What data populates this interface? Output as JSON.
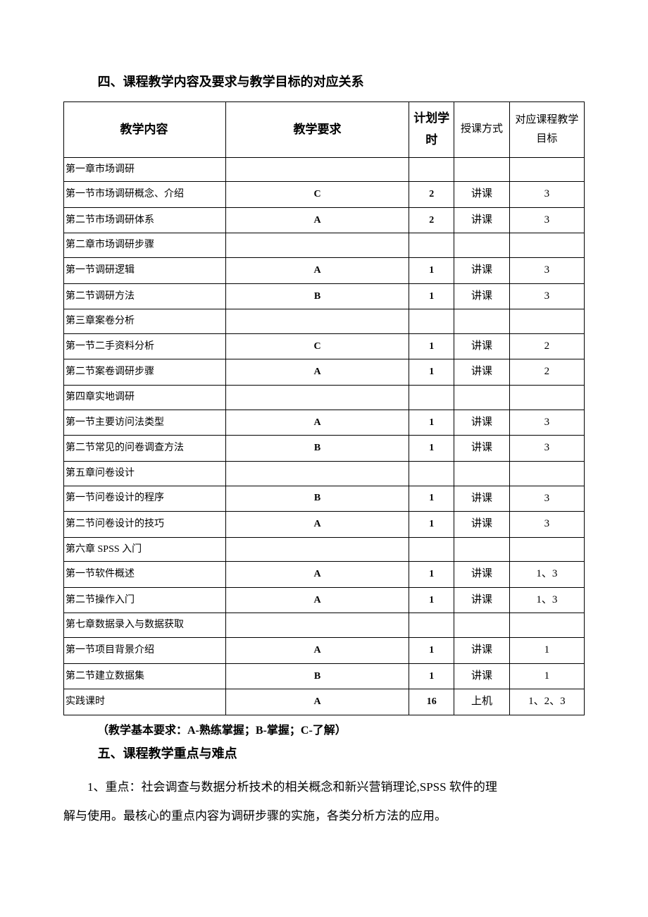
{
  "section4": {
    "heading": "四、课程教学内容及要求与教学目标的对应关系",
    "table": {
      "columns": {
        "content": "教学内容",
        "requirement": "教学要求",
        "hours": "计划学时",
        "method": "授课方式",
        "target": "对应课程教学目标"
      },
      "styling": {
        "border_color": "#000000",
        "background_color": "#ffffff",
        "header_fontsize": 17,
        "cell_fontsize": 14
      },
      "rows": [
        {
          "content": "第一章市场调研",
          "requirement": "",
          "hours": "",
          "method": "",
          "target": ""
        },
        {
          "content": "第一节市场调研概念、介绍",
          "requirement": "C",
          "hours": "2",
          "method": "讲课",
          "target": "3"
        },
        {
          "content": "第二节市场调研体系",
          "requirement": "A",
          "hours": "2",
          "method": "讲课",
          "target": "3"
        },
        {
          "content": "第二章市场调研步骤",
          "requirement": "",
          "hours": "",
          "method": "",
          "target": ""
        },
        {
          "content": "第一节调研逻辑",
          "requirement": "A",
          "hours": "1",
          "method": "讲课",
          "target": "3"
        },
        {
          "content": "第二节调研方法",
          "requirement": "B",
          "hours": "1",
          "method": "讲课",
          "target": "3"
        },
        {
          "content": "第三章案卷分析",
          "requirement": "",
          "hours": "",
          "method": "",
          "target": ""
        },
        {
          "content": "第一节二手资料分析",
          "requirement": "C",
          "hours": "1",
          "method": "讲课",
          "target": "2"
        },
        {
          "content": "第二节案卷调研步骤",
          "requirement": "A",
          "hours": "1",
          "method": "讲课",
          "target": "2"
        },
        {
          "content": "第四章实地调研",
          "requirement": "",
          "hours": "",
          "method": "",
          "target": ""
        },
        {
          "content": "第一节主要访问法类型",
          "requirement": "A",
          "hours": "1",
          "method": "讲课",
          "target": "3"
        },
        {
          "content": "第二节常见的问卷调查方法",
          "requirement": "B",
          "hours": "1",
          "method": "讲课",
          "target": "3"
        },
        {
          "content": "第五章问卷设计",
          "requirement": "",
          "hours": "",
          "method": "",
          "target": ""
        },
        {
          "content": "第一节问卷设计的程序",
          "requirement": "B",
          "hours": "1",
          "method": "讲课",
          "target": "3"
        },
        {
          "content": "第二节问卷设计的技巧",
          "requirement": "A",
          "hours": "1",
          "method": "讲课",
          "target": "3"
        },
        {
          "content": "第六章 SPSS 入门",
          "requirement": "",
          "hours": "",
          "method": "",
          "target": ""
        },
        {
          "content": "第一节软件概述",
          "requirement": "A",
          "hours": "1",
          "method": "讲课",
          "target": "1、3"
        },
        {
          "content": "第二节操作入门",
          "requirement": "A",
          "hours": "1",
          "method": "讲课",
          "target": "1、3"
        },
        {
          "content": "第七章数据录入与数据获取",
          "requirement": "",
          "hours": "",
          "method": "",
          "target": ""
        },
        {
          "content": "第一节项目背景介绍",
          "requirement": "A",
          "hours": "1",
          "method": "讲课",
          "target": "1"
        },
        {
          "content": "第二节建立数据集",
          "requirement": "B",
          "hours": "1",
          "method": "讲课",
          "target": "1"
        },
        {
          "content": "实践课时",
          "requirement": "A",
          "hours": "16",
          "method": "上机",
          "target": "1、2、3"
        }
      ]
    },
    "note": "（教学基本要求：A-熟练掌握；B-掌握；C-了解）"
  },
  "section5": {
    "heading": "五、课程教学重点与难点",
    "paragraphs": [
      "1、重点：社会调查与数据分析技术的相关概念和新兴营销理论,SPSS 软件的理",
      "解与使用。最核心的重点内容为调研步骤的实施，各类分析方法的应用。"
    ]
  }
}
